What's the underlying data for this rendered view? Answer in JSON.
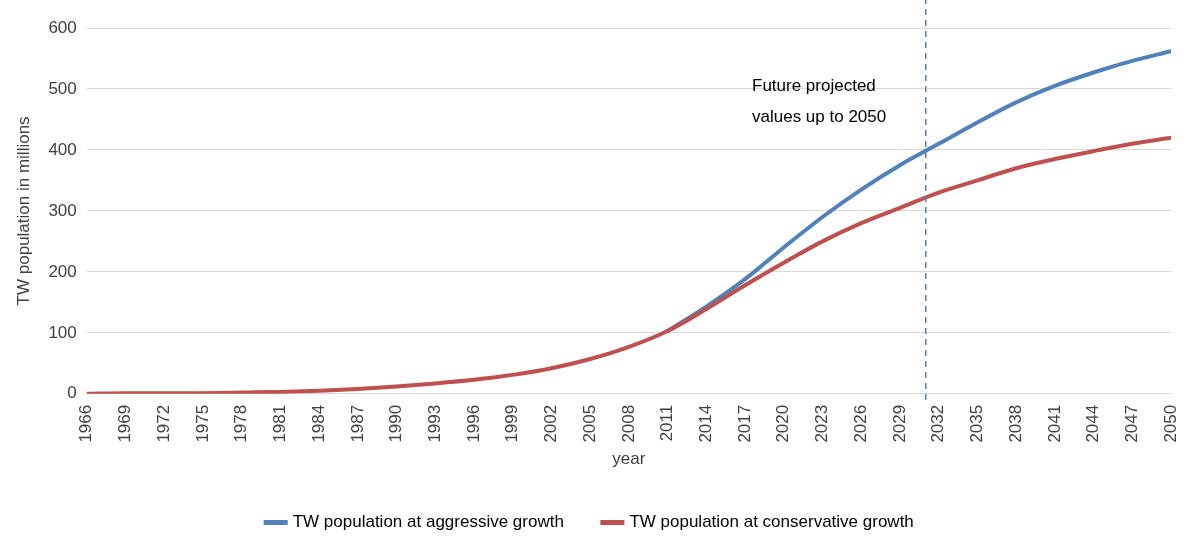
{
  "chart_data": {
    "type": "line",
    "xlabel": "year",
    "ylabel": "TW population in millions",
    "xlim": [
      1966,
      2050
    ],
    "xticks": [
      1966,
      1969,
      1972,
      1975,
      1978,
      1981,
      1984,
      1987,
      1990,
      1993,
      1996,
      1999,
      2002,
      2005,
      2008,
      2011,
      2014,
      2017,
      2020,
      2023,
      2026,
      2029,
      2032,
      2035,
      2038,
      2041,
      2044,
      2047,
      2050
    ],
    "ylim": [
      0,
      600
    ],
    "yticks": [
      0,
      100,
      200,
      300,
      400,
      500,
      600
    ],
    "grid": "y",
    "legend": "bottom",
    "marker": "none",
    "line_style": "solid",
    "series": [
      {
        "name": "TW population at aggressive growth",
        "color": "#4f81bd",
        "x": [
          2011,
          2014,
          2017,
          2020,
          2023,
          2026,
          2029,
          2032,
          2035,
          2038,
          2041,
          2044,
          2047,
          2050
        ],
        "values": [
          103,
          143,
          188,
          240,
          290,
          335,
          375,
          410,
          445,
          478,
          505,
          527,
          546,
          562
        ]
      },
      {
        "name": "TW population at conservative growth",
        "color": "#c0504d",
        "x": [
          1966,
          1969,
          1972,
          1975,
          1978,
          1981,
          1984,
          1987,
          1990,
          1993,
          1996,
          1999,
          2002,
          2005,
          2008,
          2011,
          2014,
          2017,
          2020,
          2023,
          2026,
          2029,
          2032,
          2035,
          2038,
          2041,
          2044,
          2047,
          2050
        ],
        "values": [
          0,
          1,
          1,
          1,
          2,
          3,
          5,
          8,
          12,
          17,
          23,
          31,
          42,
          57,
          77,
          103,
          139,
          178,
          215,
          250,
          280,
          305,
          330,
          350,
          370,
          385,
          398,
          410,
          420
        ]
      }
    ],
    "ref_lines": [
      {
        "axis": "x",
        "value": 2031,
        "color": "#4f81bd",
        "line_style": "dashed"
      }
    ],
    "annotations": [
      "Future projected values up to 2050"
    ]
  }
}
